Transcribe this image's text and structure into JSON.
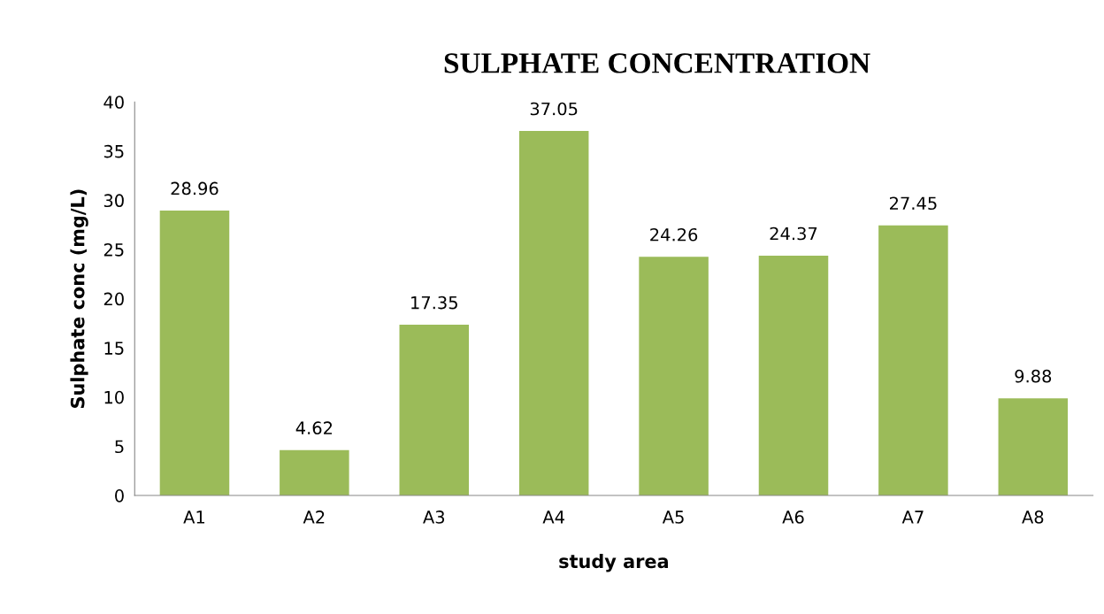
{
  "chart_data": {
    "type": "bar",
    "title": "SULPHATE CONCENTRATION",
    "xlabel": "study area",
    "ylabel": "Sulphate conc (mg/L)",
    "categories": [
      "A1",
      "A2",
      "A3",
      "A4",
      "A5",
      "A6",
      "A7",
      "A8"
    ],
    "values": [
      28.96,
      4.62,
      17.35,
      37.05,
      24.26,
      24.37,
      27.45,
      9.88
    ],
    "color": "#9bbb59",
    "ylim": [
      0,
      40
    ],
    "yticks": [
      0,
      5,
      10,
      15,
      20,
      25,
      30,
      35,
      40
    ],
    "grid": false,
    "data_labels": true,
    "legend": false
  }
}
